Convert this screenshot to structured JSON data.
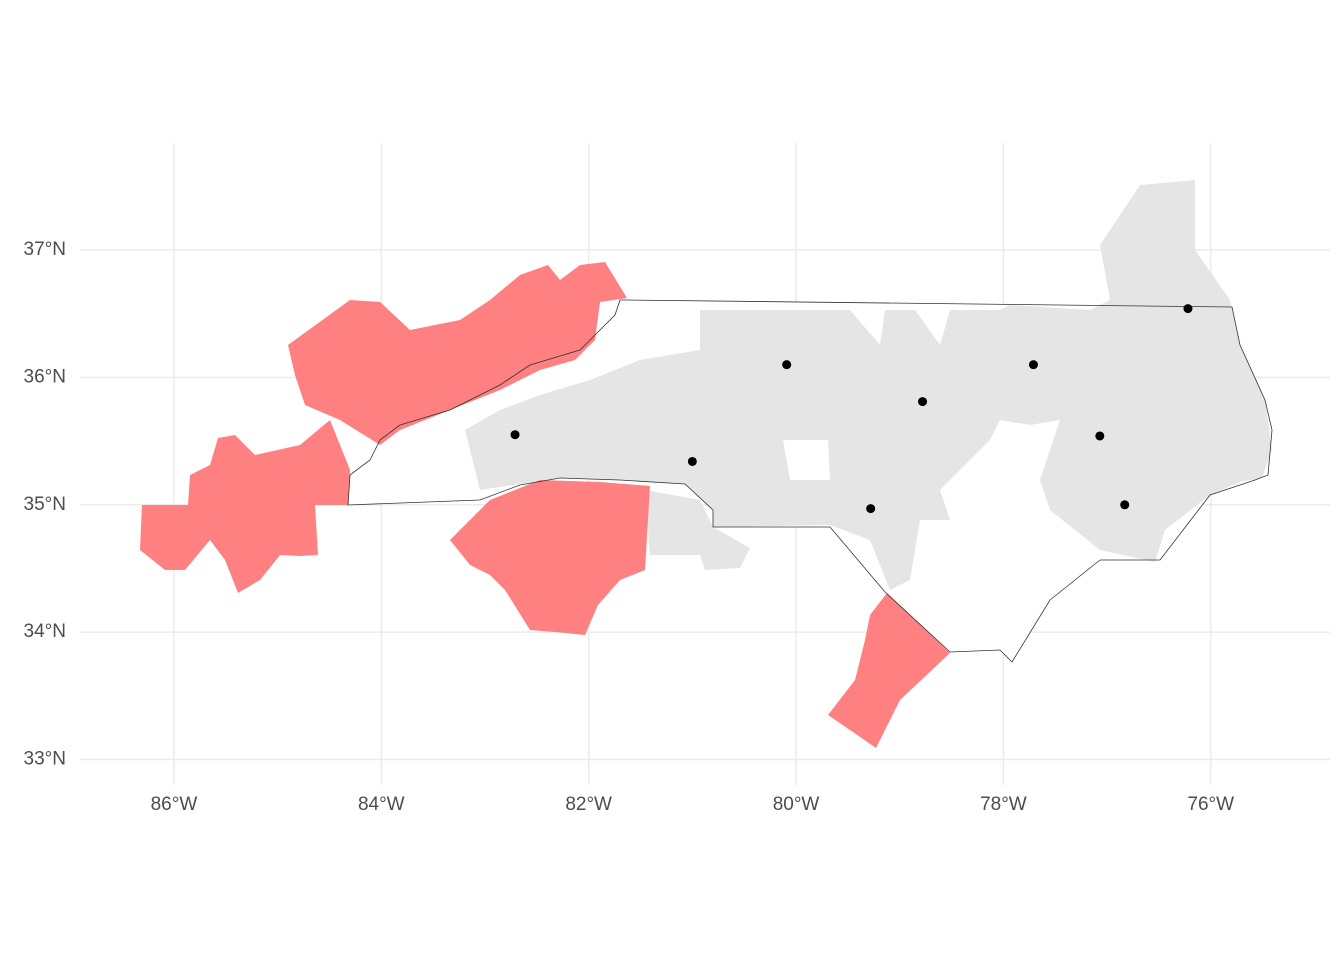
{
  "chart_data": {
    "type": "scatter",
    "x": [
      -82.71,
      -80.09,
      -81.0,
      -78.78,
      -79.28,
      -77.71,
      -77.07,
      -76.83,
      -76.22
    ],
    "y": [
      35.55,
      36.1,
      35.34,
      35.81,
      34.97,
      36.1,
      35.54,
      35.0,
      36.54
    ],
    "color": "#000000",
    "xlim": [
      -86.906,
      -74.85
    ],
    "ylim": [
      32.8,
      37.84
    ],
    "xticks": [
      {
        "value": -86,
        "label": "86°W"
      },
      {
        "value": -84,
        "label": "84°W"
      },
      {
        "value": -82,
        "label": "82°W"
      },
      {
        "value": -80,
        "label": "80°W"
      },
      {
        "value": -78,
        "label": "78°W"
      },
      {
        "value": -76,
        "label": "76°W"
      }
    ],
    "yticks": [
      {
        "value": 33,
        "label": "33°N"
      },
      {
        "value": 34,
        "label": "34°N"
      },
      {
        "value": 35,
        "label": "35°N"
      },
      {
        "value": 36,
        "label": "36°N"
      },
      {
        "value": 37,
        "label": "37°N"
      }
    ],
    "grid": true
  }
}
